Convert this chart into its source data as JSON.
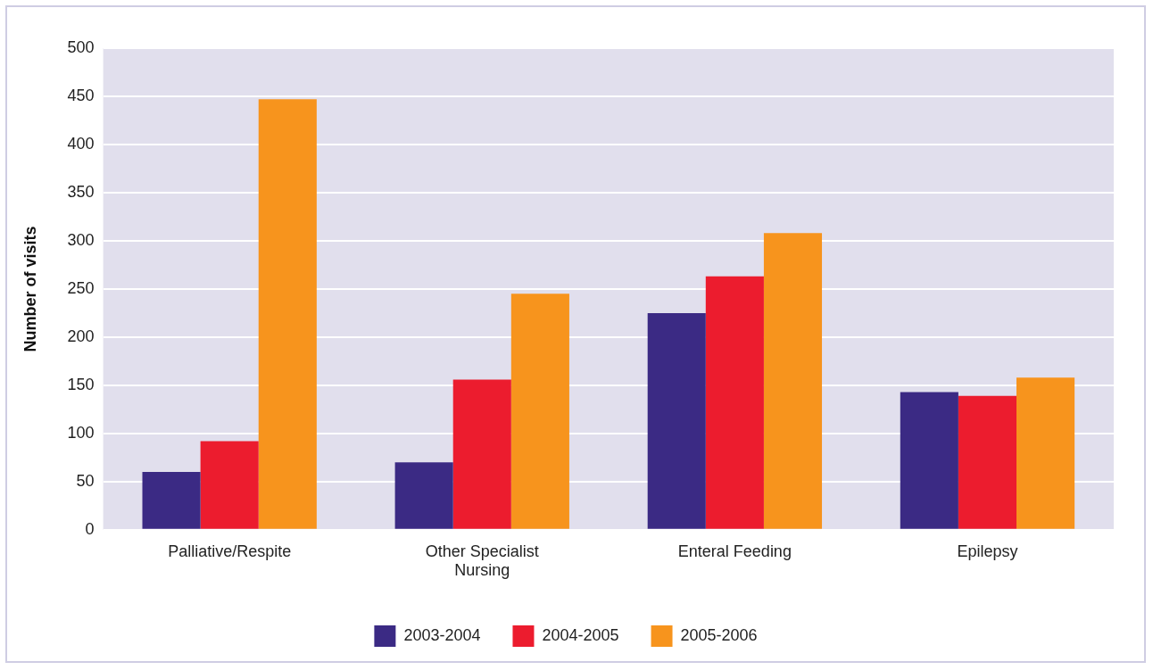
{
  "chart_data": {
    "type": "bar",
    "ylabel": "Number of visits",
    "categories": [
      "Palliative/Respite",
      "Other Specialist Nursing",
      "Enteral Feeding",
      "Epilepsy"
    ],
    "series": [
      {
        "name": "2003-2004",
        "color": "#3b2a84",
        "values": [
          60,
          70,
          225,
          143
        ]
      },
      {
        "name": "2004-2005",
        "color": "#ec1c2e",
        "values": [
          92,
          156,
          263,
          139
        ]
      },
      {
        "name": "2005-2006",
        "color": "#f7941d",
        "values": [
          447,
          245,
          308,
          158
        ]
      }
    ],
    "ylim": [
      0,
      500
    ],
    "yticks": [
      0,
      50,
      100,
      150,
      200,
      250,
      300,
      350,
      400,
      450,
      500
    ],
    "grid": "y",
    "legend": "bottom"
  }
}
